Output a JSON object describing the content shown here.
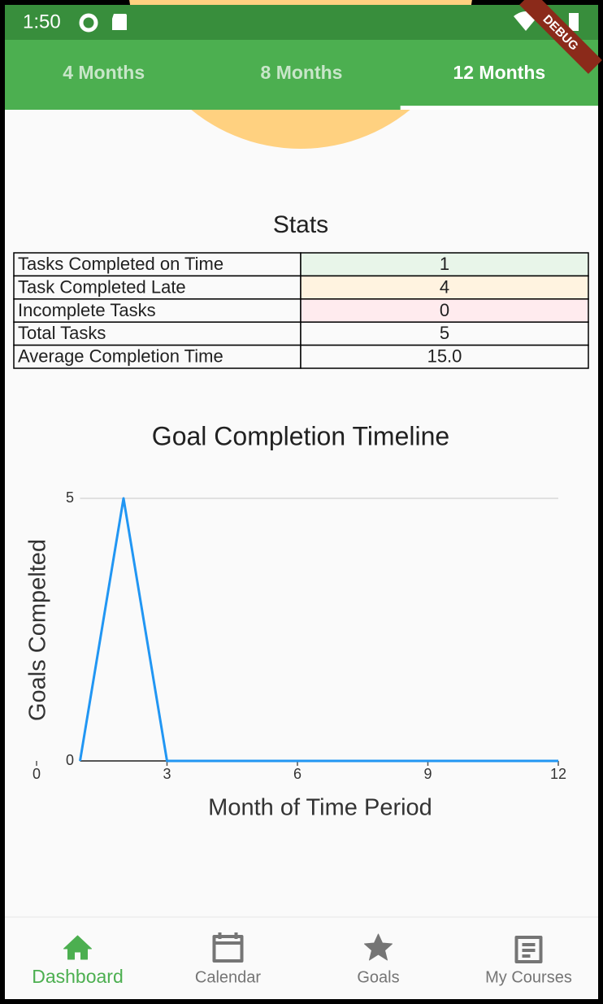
{
  "status_bar": {
    "time": "1:50"
  },
  "debug_banner": "DEBUG",
  "tabs": {
    "items": [
      "4 Months",
      "8 Months",
      "12 Months"
    ],
    "selected": 2
  },
  "stats": {
    "title": "Stats",
    "rows": [
      [
        "Tasks Completed on Time",
        "1"
      ],
      [
        "Task Completed Late",
        "4"
      ],
      [
        "Incomplete Tasks",
        "0"
      ],
      [
        "Total Tasks",
        "5"
      ],
      [
        "Average Completion Time",
        "15.0"
      ]
    ],
    "row_colors": [
      "#e8f5e9",
      "#fff3e0",
      "#ffebee",
      "#fafafa",
      "#fafafa"
    ]
  },
  "chart_data": {
    "type": "line",
    "title": "Goal Completion Timeline",
    "x_label": "Month of Time Period",
    "y_label": "Goals Compelted",
    "x": [
      1,
      2,
      3,
      4,
      5,
      6,
      7,
      8,
      9,
      10,
      11,
      12
    ],
    "series": [
      {
        "color": "#2196f3",
        "values": [
          0,
          5,
          0,
          0,
          0,
          0,
          0,
          0,
          0,
          0,
          0,
          0
        ]
      }
    ],
    "xlim": [
      0,
      12
    ],
    "xticks": [
      0,
      3,
      6,
      9,
      12
    ],
    "ylim": [
      0,
      5
    ],
    "yticks": [
      0,
      5
    ],
    "grid": true
  },
  "bottom_nav": {
    "items": [
      "Dashboard",
      "Calendar",
      "Goals",
      "My Courses"
    ],
    "active": 0
  }
}
